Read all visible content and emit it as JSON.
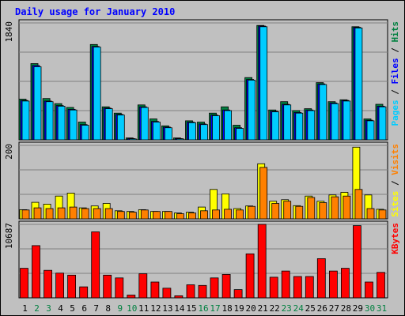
{
  "chart_data": {
    "type": "bar",
    "title": "Daily usage for January 2010",
    "categories": [
      "1",
      "2",
      "3",
      "4",
      "5",
      "6",
      "7",
      "8",
      "9",
      "10",
      "11",
      "12",
      "13",
      "14",
      "15",
      "16",
      "17",
      "18",
      "19",
      "20",
      "21",
      "22",
      "23",
      "24",
      "25",
      "26",
      "27",
      "28",
      "29",
      "30",
      "31"
    ],
    "weekend_days": [
      "2",
      "3",
      "9",
      "10",
      "16",
      "17",
      "23",
      "24",
      "30",
      "31"
    ],
    "panels": [
      {
        "id": "pages-files-hits",
        "ymax_label": "1840",
        "ymax": 1840,
        "grid": true,
        "right_label_parts": [
          {
            "text": "Pages",
            "color": "#00ccff"
          },
          {
            "text": " / ",
            "color": "#000000"
          },
          {
            "text": "Files",
            "color": "#0000ff"
          },
          {
            "text": " / ",
            "color": "#000000"
          },
          {
            "text": "Hits",
            "color": "#008040"
          }
        ],
        "series": [
          {
            "name": "Hits",
            "color": "#008040",
            "values": [
              640,
              1200,
              650,
              570,
              510,
              280,
              1500,
              520,
              420,
              30,
              550,
              330,
              220,
              30,
              300,
              280,
              420,
              520,
              230,
              980,
              1800,
              470,
              600,
              460,
              490,
              900,
              600,
              630,
              1780,
              330,
              560
            ]
          },
          {
            "name": "Files",
            "color": "#0000ff",
            "values": [
              620,
              1170,
              610,
              540,
              480,
              240,
              1470,
              500,
              400,
              20,
              520,
              290,
              200,
              20,
              280,
              250,
              390,
              470,
              190,
              950,
              1790,
              450,
              560,
              430,
              470,
              880,
              580,
              620,
              1770,
              310,
              530
            ]
          },
          {
            "name": "Pages",
            "color": "#00ccff",
            "values": [
              610,
              1150,
              600,
              530,
              470,
              230,
              1460,
              490,
              390,
              15,
              510,
              280,
              190,
              15,
              270,
              240,
              380,
              460,
              180,
              940,
              1780,
              440,
              550,
              420,
              460,
              870,
              570,
              610,
              1760,
              300,
              520
            ]
          }
        ]
      },
      {
        "id": "sites-visits",
        "ymax_label": "200",
        "ymax": 200,
        "grid": true,
        "right_label_parts": [
          {
            "text": "Sites",
            "color": "#ffff00"
          },
          {
            "text": " / ",
            "color": "#000000"
          },
          {
            "text": "Visits",
            "color": "#ff8000"
          }
        ],
        "series": [
          {
            "name": "Sites",
            "color": "#ffff00",
            "values": [
              25,
              45,
              40,
              62,
              70,
              30,
              35,
              42,
              22,
              20,
              25,
              20,
              20,
              16,
              18,
              32,
              80,
              68,
              28,
              35,
              150,
              48,
              52,
              36,
              62,
              48,
              65,
              72,
              195,
              65,
              26
            ]
          },
          {
            "name": "Visits",
            "color": "#ff8000",
            "values": [
              24,
              30,
              28,
              30,
              32,
              28,
              28,
              28,
              20,
              18,
              24,
              20,
              20,
              14,
              16,
              22,
              24,
              26,
              24,
              34,
              140,
              42,
              48,
              34,
              58,
              44,
              60,
              62,
              80,
              28,
              24
            ]
          }
        ]
      },
      {
        "id": "kbytes",
        "ymax_label": "10687",
        "ymax": 10687,
        "grid": true,
        "right_label_parts": [
          {
            "text": "KBytes",
            "color": "#ff0000"
          }
        ],
        "series": [
          {
            "name": "KBytes",
            "color": "#ff0000",
            "values": [
              4300,
              7600,
              4000,
              3600,
              3300,
              1600,
              9600,
              3300,
              2900,
              400,
              3500,
              2300,
              1400,
              300,
              1900,
              1800,
              2900,
              3400,
              1200,
              6400,
              10687,
              3000,
              3900,
              3100,
              3100,
              5700,
              3900,
              4300,
              10500,
              2300,
              3700
            ]
          }
        ]
      }
    ]
  }
}
